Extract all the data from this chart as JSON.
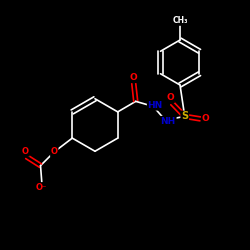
{
  "background_color": "#000000",
  "bond_color": "#ffffff",
  "atom_colors": {
    "O": "#ff0000",
    "N": "#0000cc",
    "S": "#ccaa00",
    "C": "#ffffff",
    "H": "#ffffff"
  },
  "figsize": [
    2.5,
    2.5
  ],
  "dpi": 100,
  "xlim": [
    0,
    10
  ],
  "ylim": [
    0,
    10
  ]
}
